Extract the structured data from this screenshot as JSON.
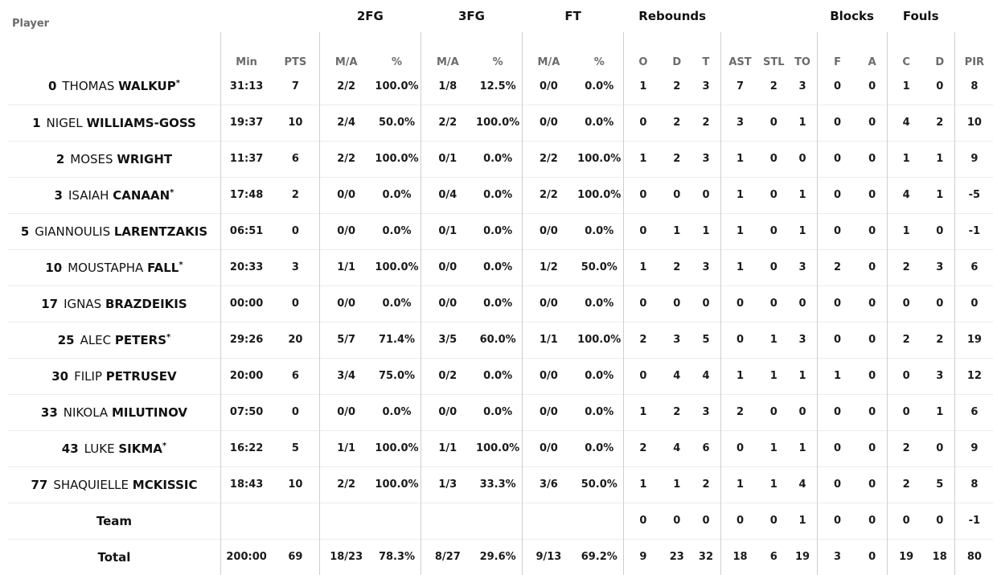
{
  "headers": {
    "groups": {
      "fg2": "2FG",
      "fg3": "3FG",
      "ft": "FT",
      "rebounds": "Rebounds",
      "blocks": "Blocks",
      "fouls": "Fouls"
    },
    "columns": {
      "player": "Player",
      "min": "Min",
      "pts": "PTS",
      "fg2_ma": "M/A",
      "fg2_pct": "%",
      "fg3_ma": "M/A",
      "fg3_pct": "%",
      "ft_ma": "M/A",
      "ft_pct": "%",
      "reb_o": "O",
      "reb_d": "D",
      "reb_t": "T",
      "ast": "AST",
      "stl": "STL",
      "to": "TO",
      "blk_f": "F",
      "blk_a": "A",
      "foul_c": "C",
      "foul_d": "D",
      "pir": "PIR"
    }
  },
  "players": [
    {
      "num": "0",
      "first": "THOMAS",
      "last": "WALKUP",
      "star": "*",
      "min": "31:13",
      "pts": "7",
      "fg2_ma": "2/2",
      "fg2_pct": "100.0%",
      "fg3_ma": "1/8",
      "fg3_pct": "12.5%",
      "ft_ma": "0/0",
      "ft_pct": "0.0%",
      "o": "1",
      "d": "2",
      "t": "3",
      "ast": "7",
      "stl": "2",
      "to": "3",
      "bf": "0",
      "ba": "0",
      "fc": "1",
      "fd": "0",
      "pir": "8"
    },
    {
      "num": "1",
      "first": "NIGEL",
      "last": "WILLIAMS-GOSS",
      "star": "",
      "min": "19:37",
      "pts": "10",
      "fg2_ma": "2/4",
      "fg2_pct": "50.0%",
      "fg3_ma": "2/2",
      "fg3_pct": "100.0%",
      "ft_ma": "0/0",
      "ft_pct": "0.0%",
      "o": "0",
      "d": "2",
      "t": "2",
      "ast": "3",
      "stl": "0",
      "to": "1",
      "bf": "0",
      "ba": "0",
      "fc": "4",
      "fd": "2",
      "pir": "10"
    },
    {
      "num": "2",
      "first": "MOSES",
      "last": "WRIGHT",
      "star": "",
      "min": "11:37",
      "pts": "6",
      "fg2_ma": "2/2",
      "fg2_pct": "100.0%",
      "fg3_ma": "0/1",
      "fg3_pct": "0.0%",
      "ft_ma": "2/2",
      "ft_pct": "100.0%",
      "o": "1",
      "d": "2",
      "t": "3",
      "ast": "1",
      "stl": "0",
      "to": "0",
      "bf": "0",
      "ba": "0",
      "fc": "1",
      "fd": "1",
      "pir": "9"
    },
    {
      "num": "3",
      "first": "ISAIAH",
      "last": "CANAAN",
      "star": "*",
      "min": "17:48",
      "pts": "2",
      "fg2_ma": "0/0",
      "fg2_pct": "0.0%",
      "fg3_ma": "0/4",
      "fg3_pct": "0.0%",
      "ft_ma": "2/2",
      "ft_pct": "100.0%",
      "o": "0",
      "d": "0",
      "t": "0",
      "ast": "1",
      "stl": "0",
      "to": "1",
      "bf": "0",
      "ba": "0",
      "fc": "4",
      "fd": "1",
      "pir": "-5"
    },
    {
      "num": "5",
      "first": "GIANNOULIS",
      "last": "LARENTZAKIS",
      "star": "",
      "min": "06:51",
      "pts": "0",
      "fg2_ma": "0/0",
      "fg2_pct": "0.0%",
      "fg3_ma": "0/1",
      "fg3_pct": "0.0%",
      "ft_ma": "0/0",
      "ft_pct": "0.0%",
      "o": "0",
      "d": "1",
      "t": "1",
      "ast": "1",
      "stl": "0",
      "to": "1",
      "bf": "0",
      "ba": "0",
      "fc": "1",
      "fd": "0",
      "pir": "-1"
    },
    {
      "num": "10",
      "first": "MOUSTAPHA",
      "last": "FALL",
      "star": "*",
      "min": "20:33",
      "pts": "3",
      "fg2_ma": "1/1",
      "fg2_pct": "100.0%",
      "fg3_ma": "0/0",
      "fg3_pct": "0.0%",
      "ft_ma": "1/2",
      "ft_pct": "50.0%",
      "o": "1",
      "d": "2",
      "t": "3",
      "ast": "1",
      "stl": "0",
      "to": "3",
      "bf": "2",
      "ba": "0",
      "fc": "2",
      "fd": "3",
      "pir": "6"
    },
    {
      "num": "17",
      "first": "IGNAS",
      "last": "BRAZDEIKIS",
      "star": "",
      "min": "00:00",
      "pts": "0",
      "fg2_ma": "0/0",
      "fg2_pct": "0.0%",
      "fg3_ma": "0/0",
      "fg3_pct": "0.0%",
      "ft_ma": "0/0",
      "ft_pct": "0.0%",
      "o": "0",
      "d": "0",
      "t": "0",
      "ast": "0",
      "stl": "0",
      "to": "0",
      "bf": "0",
      "ba": "0",
      "fc": "0",
      "fd": "0",
      "pir": "0"
    },
    {
      "num": "25",
      "first": "ALEC",
      "last": "PETERS",
      "star": "*",
      "min": "29:26",
      "pts": "20",
      "fg2_ma": "5/7",
      "fg2_pct": "71.4%",
      "fg3_ma": "3/5",
      "fg3_pct": "60.0%",
      "ft_ma": "1/1",
      "ft_pct": "100.0%",
      "o": "2",
      "d": "3",
      "t": "5",
      "ast": "0",
      "stl": "1",
      "to": "3",
      "bf": "0",
      "ba": "0",
      "fc": "2",
      "fd": "2",
      "pir": "19"
    },
    {
      "num": "30",
      "first": "FILIP",
      "last": "PETRUSEV",
      "star": "",
      "min": "20:00",
      "pts": "6",
      "fg2_ma": "3/4",
      "fg2_pct": "75.0%",
      "fg3_ma": "0/2",
      "fg3_pct": "0.0%",
      "ft_ma": "0/0",
      "ft_pct": "0.0%",
      "o": "0",
      "d": "4",
      "t": "4",
      "ast": "1",
      "stl": "1",
      "to": "1",
      "bf": "1",
      "ba": "0",
      "fc": "0",
      "fd": "3",
      "pir": "12"
    },
    {
      "num": "33",
      "first": "NIKOLA",
      "last": "MILUTINOV",
      "star": "",
      "min": "07:50",
      "pts": "0",
      "fg2_ma": "0/0",
      "fg2_pct": "0.0%",
      "fg3_ma": "0/0",
      "fg3_pct": "0.0%",
      "ft_ma": "0/0",
      "ft_pct": "0.0%",
      "o": "1",
      "d": "2",
      "t": "3",
      "ast": "2",
      "stl": "0",
      "to": "0",
      "bf": "0",
      "ba": "0",
      "fc": "0",
      "fd": "1",
      "pir": "6"
    },
    {
      "num": "43",
      "first": "LUKE",
      "last": "SIKMA",
      "star": "*",
      "min": "16:22",
      "pts": "5",
      "fg2_ma": "1/1",
      "fg2_pct": "100.0%",
      "fg3_ma": "1/1",
      "fg3_pct": "100.0%",
      "ft_ma": "0/0",
      "ft_pct": "0.0%",
      "o": "2",
      "d": "4",
      "t": "6",
      "ast": "0",
      "stl": "1",
      "to": "1",
      "bf": "0",
      "ba": "0",
      "fc": "2",
      "fd": "0",
      "pir": "9"
    },
    {
      "num": "77",
      "first": "SHAQUIELLE",
      "last": "MCKISSIC",
      "star": "",
      "min": "18:43",
      "pts": "10",
      "fg2_ma": "2/2",
      "fg2_pct": "100.0%",
      "fg3_ma": "1/3",
      "fg3_pct": "33.3%",
      "ft_ma": "3/6",
      "ft_pct": "50.0%",
      "o": "1",
      "d": "1",
      "t": "2",
      "ast": "1",
      "stl": "1",
      "to": "4",
      "bf": "0",
      "ba": "0",
      "fc": "2",
      "fd": "5",
      "pir": "8"
    }
  ],
  "team_row": {
    "label": "Team",
    "min": "",
    "pts": "",
    "fg2_ma": "",
    "fg2_pct": "",
    "fg3_ma": "",
    "fg3_pct": "",
    "ft_ma": "",
    "ft_pct": "",
    "o": "0",
    "d": "0",
    "t": "0",
    "ast": "0",
    "stl": "0",
    "to": "1",
    "bf": "0",
    "ba": "0",
    "fc": "0",
    "fd": "0",
    "pir": "-1"
  },
  "total_row": {
    "label": "Total",
    "min": "200:00",
    "pts": "69",
    "fg2_ma": "18/23",
    "fg2_pct": "78.3%",
    "fg3_ma": "8/27",
    "fg3_pct": "29.6%",
    "ft_ma": "9/13",
    "ft_pct": "69.2%",
    "o": "9",
    "d": "23",
    "t": "32",
    "ast": "18",
    "stl": "6",
    "to": "19",
    "bf": "3",
    "ba": "0",
    "fc": "19",
    "fd": "18",
    "pir": "80"
  },
  "colors": {
    "text": "#1a1a1a",
    "subheader": "#6b6b6b",
    "divider": "#cfcfcf",
    "row_line": "#ececec"
  }
}
